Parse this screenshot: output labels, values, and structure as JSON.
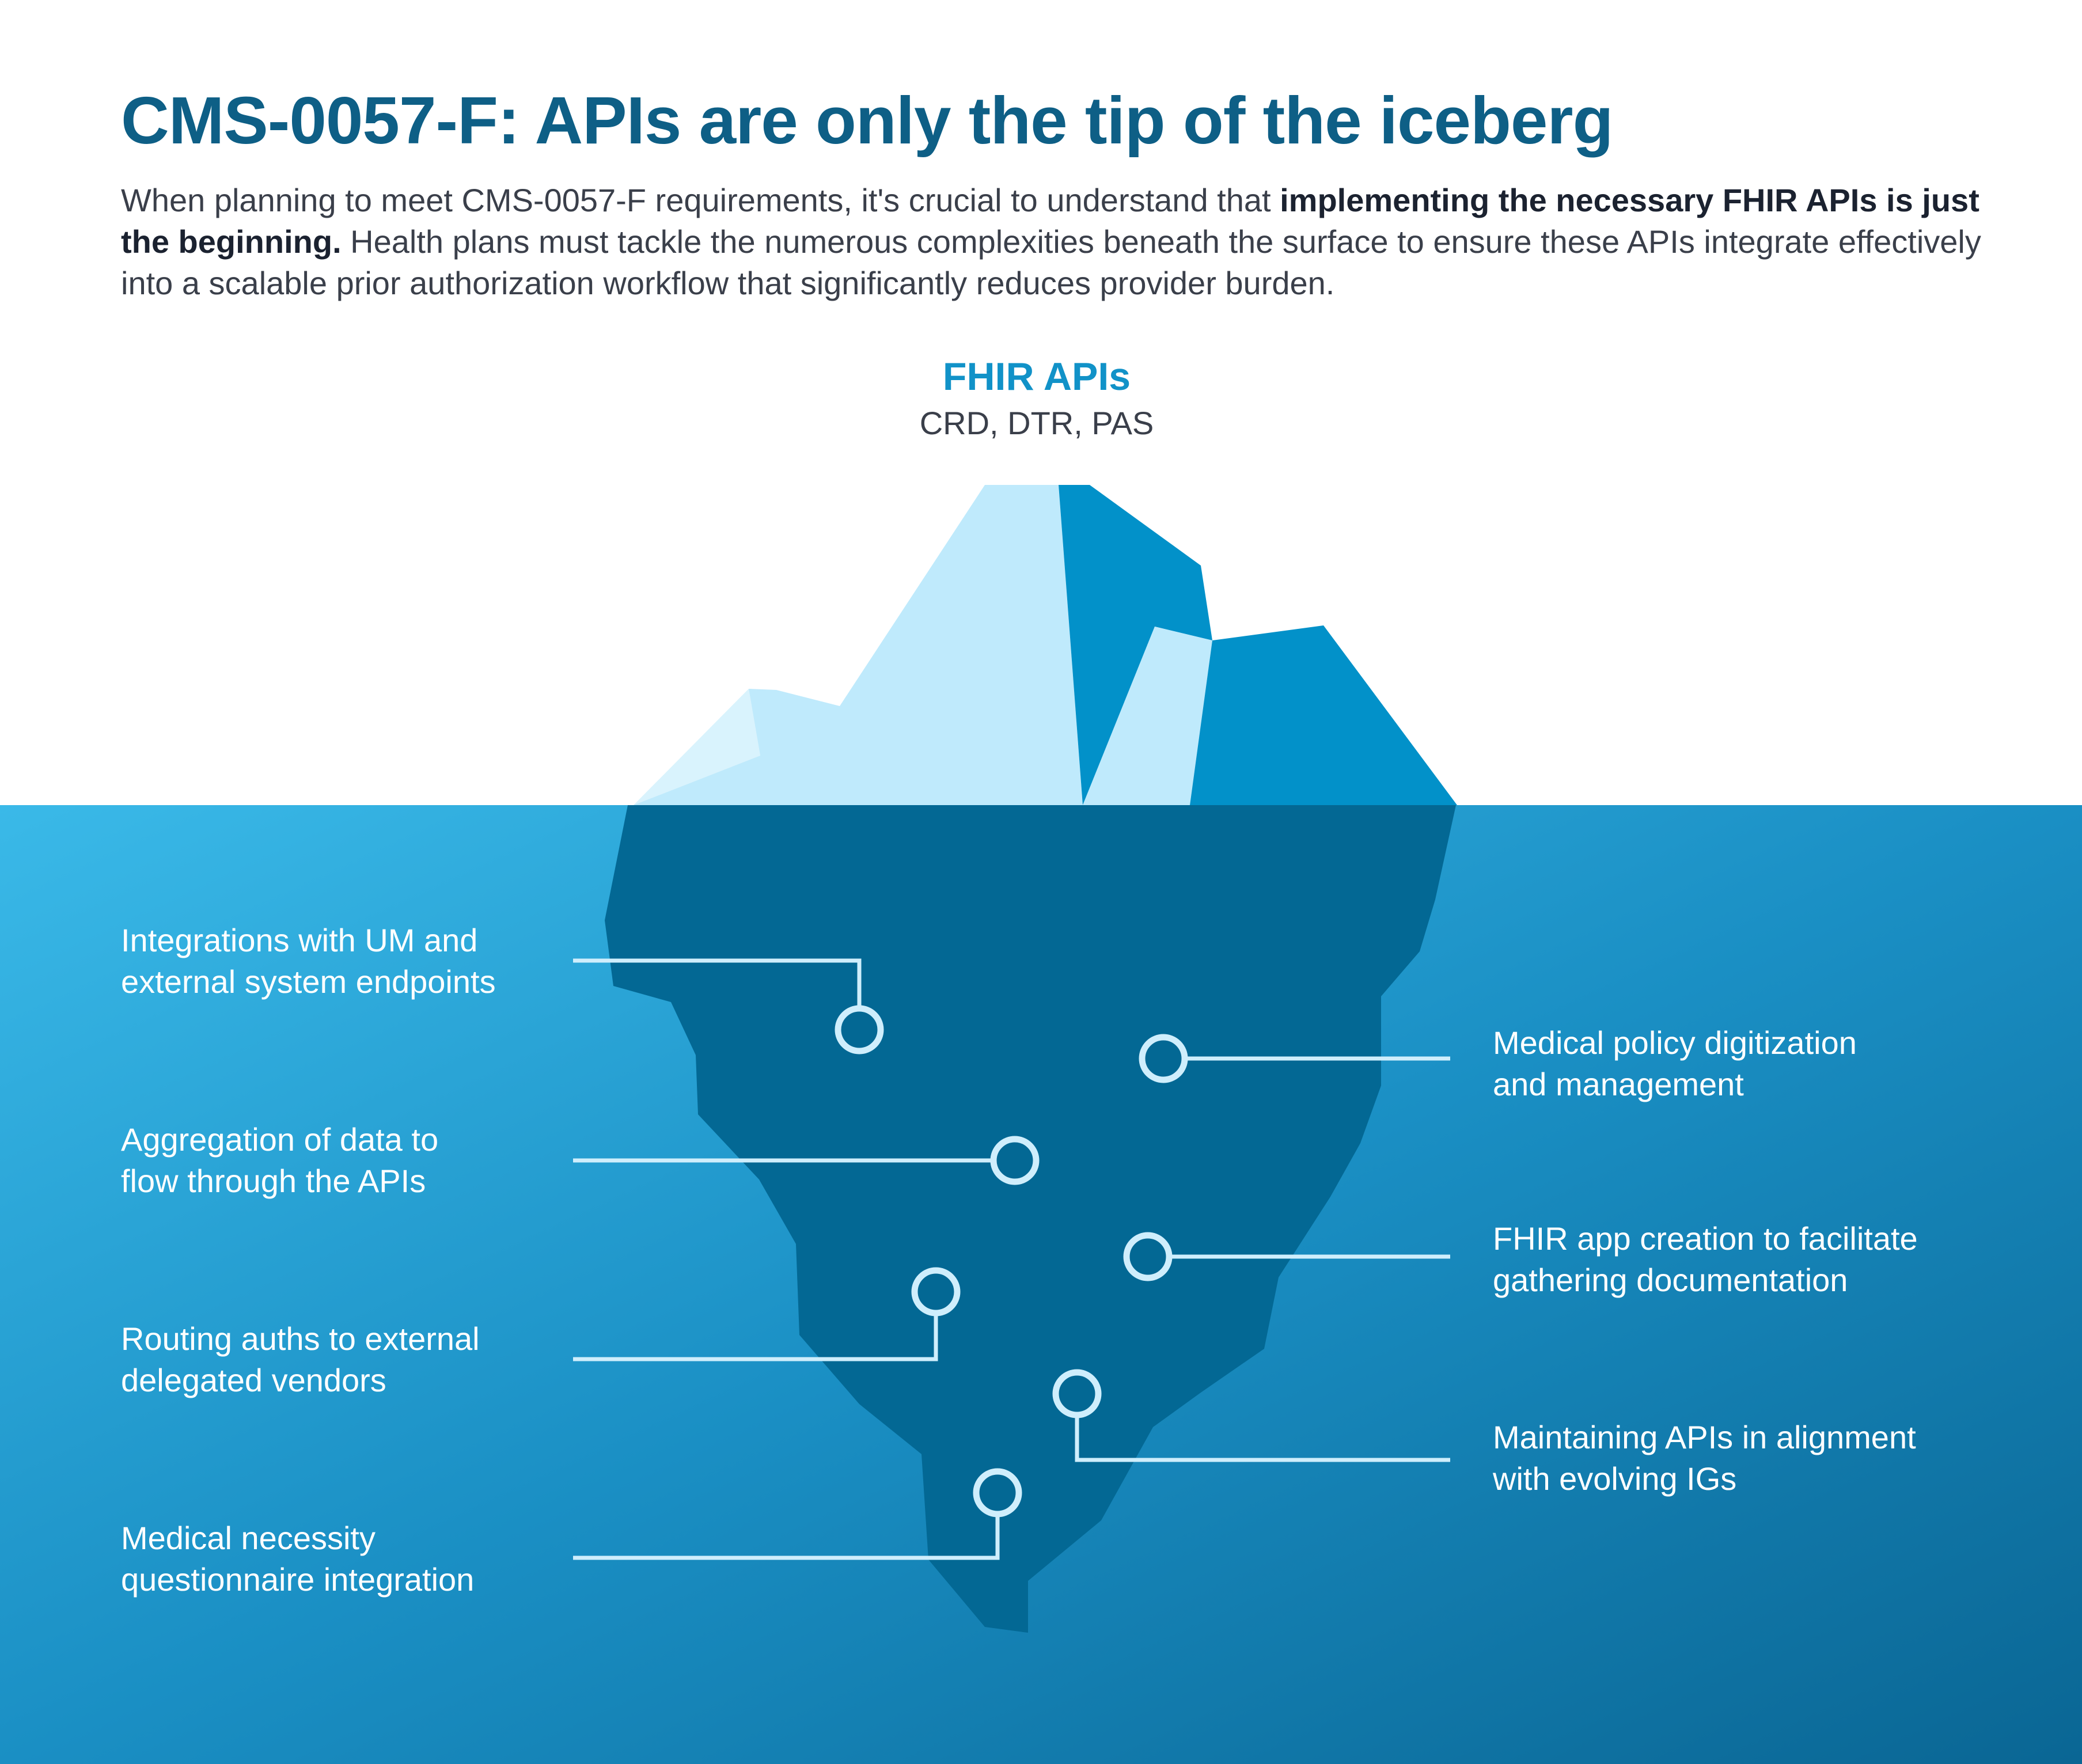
{
  "title": "CMS-0057-F: APIs are only the tip of the iceberg",
  "intro": {
    "part1": "When planning to meet CMS-0057-F requirements, it's crucial to understand that ",
    "bold": "implementing the necessary FHIR APIs is just the beginning.",
    "part2": " Health plans must tackle the numerous complexities beneath the surface to ensure these APIs integrate effectively into a scalable prior authorization workflow that significantly reduces provider burden."
  },
  "tip": {
    "title": "FHIR APIs",
    "subtitle": "CRD, DTR, PAS"
  },
  "left_items": [
    {
      "line1": "Integrations with UM and",
      "line2": "external system endpoints"
    },
    {
      "line1": "Aggregation of data to",
      "line2": "flow through the APIs"
    },
    {
      "line1": "Routing auths to external",
      "line2": "delegated vendors"
    },
    {
      "line1": "Medical necessity",
      "line2": "questionnaire integration"
    }
  ],
  "right_items": [
    {
      "line1": "Medical policy digitization",
      "line2": "and management"
    },
    {
      "line1": "FHIR app creation to facilitate",
      "line2": "gathering documentation"
    },
    {
      "line1": "Maintaining APIs in alignment",
      "line2": "with evolving IGs"
    }
  ],
  "colors": {
    "title": "#0e5f86",
    "accent": "#1192c8",
    "water_top": "#35b6e6",
    "water_bottom": "#0a6a98",
    "iceberg_under": "#036894",
    "ice_light": "#bfeafc",
    "ice_dark": "#0291c9",
    "connector": "#cfeefc"
  }
}
